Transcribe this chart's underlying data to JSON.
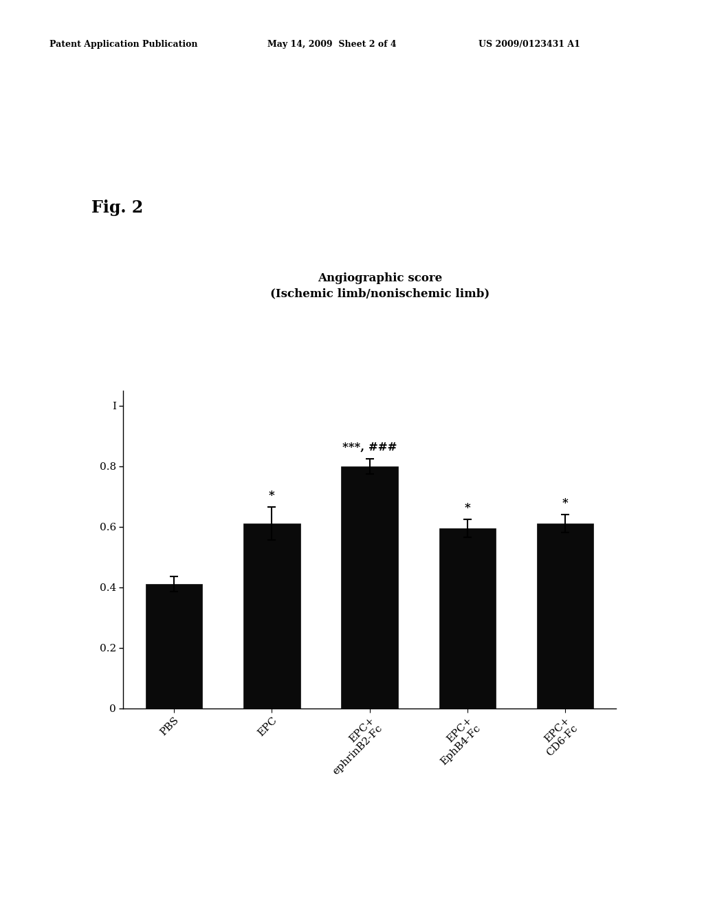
{
  "title_line1": "Angiographic score",
  "title_line2": "(Ischemic limb/nonischemic limb)",
  "fig2_label": "Fig. 2",
  "header_left": "Patent Application Publication",
  "header_mid": "May 14, 2009  Sheet 2 of 4",
  "header_right": "US 2009/0123431 A1",
  "categories": [
    "PBS",
    "EPC",
    "EPC+\nephrinB2-Fc",
    "EPC+\nEphB4-Fc",
    "EPC+\nCD6-Fc"
  ],
  "values": [
    0.41,
    0.61,
    0.8,
    0.595,
    0.61
  ],
  "errors": [
    0.025,
    0.055,
    0.025,
    0.03,
    0.03
  ],
  "annotations": [
    "",
    "*",
    "***, ###",
    "*",
    "*"
  ],
  "bar_color": "#0a0a0a",
  "error_color": "#000000",
  "ylim": [
    0,
    1.05
  ],
  "yticks": [
    0,
    0.2,
    0.4,
    0.6,
    0.8,
    1
  ],
  "ytick_labels": [
    "0",
    "0.2",
    "0.4",
    "0.6",
    "0.8",
    "I"
  ],
  "background_color": "#ffffff",
  "title_fontsize": 12,
  "tick_fontsize": 11,
  "annotation_fontsize": 12,
  "fig2_fontsize": 17,
  "header_fontsize": 9
}
